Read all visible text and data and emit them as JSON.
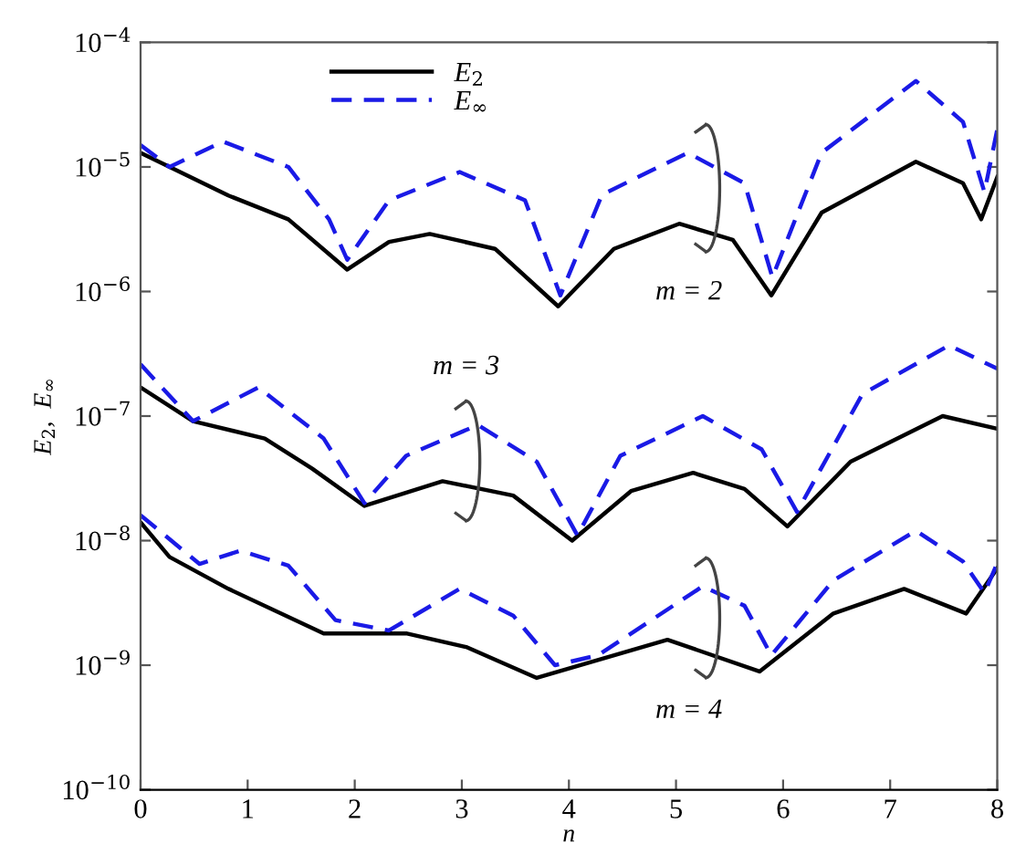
{
  "chart_data": {
    "type": "line",
    "xlabel": "n",
    "ylabel": "E$_{2}$,  E$_{∞}$",
    "xlim": [
      0,
      8
    ],
    "xticks": [
      0,
      1,
      2,
      3,
      4,
      5,
      6,
      7,
      8
    ],
    "ylim": [
      1e-10,
      0.0001
    ],
    "log": "y",
    "yticks": [
      {
        "value": 1e-10,
        "label": "10$^{−10}$"
      },
      {
        "value": 1e-09,
        "label": "10$^{−9}$"
      },
      {
        "value": 1e-08,
        "label": "10$^{−8}$"
      },
      {
        "value": 1e-07,
        "label": "10$^{−7}$"
      },
      {
        "value": 1e-06,
        "label": "10$^{−6}$"
      },
      {
        "value": 1e-05,
        "label": "10$^{−5}$"
      },
      {
        "value": 0.0001,
        "label": "10$^{−4}$"
      }
    ],
    "grid": false,
    "legend": "top",
    "marker": "none",
    "series": [
      {
        "name": "E$_{2}$",
        "color": "#000000",
        "line_style": "solid",
        "x": [
          0,
          0.82,
          1.38,
          1.93,
          2.32,
          2.7,
          3.31,
          3.9,
          4.42,
          5.03,
          5.53,
          5.89,
          6.36,
          7.24,
          7.68,
          7.85,
          8
        ],
        "values": [
          1.3e-05,
          5.9e-06,
          3.8e-06,
          1.5e-06,
          2.5e-06,
          2.9e-06,
          2.2e-06,
          7.6e-07,
          2.2e-06,
          3.5e-06,
          2.6e-06,
          9.3e-07,
          4.3e-06,
          1.1e-05,
          7.4e-06,
          3.8e-06,
          8.3e-06
        ]
      },
      {
        "name": "E$_{∞}$",
        "color": "#1a1ae6",
        "line_style": "dashed",
        "x": [
          0,
          0.27,
          0.77,
          1.38,
          1.76,
          1.93,
          2.32,
          2.98,
          3.59,
          3.92,
          4.31,
          5.11,
          5.64,
          5.9,
          6.36,
          7.24,
          7.68,
          7.88,
          8
        ],
        "values": [
          1.5e-05,
          1e-05,
          1.6e-05,
          1e-05,
          3.8e-06,
          1.8e-06,
          5.4e-06,
          9.1e-06,
          5.4e-06,
          9.3e-07,
          6e-06,
          1.3e-05,
          7.4e-06,
          1.3e-06,
          1.3e-05,
          4.9e-05,
          2.3e-05,
          6.3e-06,
          2e-05
        ]
      },
      {
        "color": "#000000",
        "line_style": "solid",
        "x": [
          0,
          0.49,
          1.16,
          1.6,
          2.09,
          2.82,
          3.48,
          4.03,
          4.58,
          5.16,
          5.64,
          6.04,
          6.63,
          7.49,
          8
        ],
        "values": [
          1.7e-07,
          9.1e-08,
          6.6e-08,
          3.8e-08,
          1.9e-08,
          3e-08,
          2.3e-08,
          1e-08,
          2.5e-08,
          3.5e-08,
          2.6e-08,
          1.3e-08,
          4.3e-08,
          1e-07,
          7.9e-08
        ]
      },
      {
        "color": "#1a1ae6",
        "line_style": "dashed",
        "x": [
          0,
          0.49,
          1.1,
          1.71,
          2.09,
          2.48,
          3.15,
          3.7,
          4.08,
          4.48,
          5.25,
          5.8,
          6.13,
          6.74,
          7.55,
          8
        ],
        "values": [
          2.6e-07,
          9.1e-08,
          1.7e-07,
          6.6e-08,
          2e-08,
          4.8e-08,
          8.5e-08,
          4.3e-08,
          1.1e-08,
          4.8e-08,
          1e-07,
          5.4e-08,
          1.7e-08,
          1.5e-07,
          3.7e-07,
          2.4e-07
        ]
      },
      {
        "color": "#000000",
        "line_style": "solid",
        "x": [
          0,
          0.27,
          0.82,
          1.71,
          2.48,
          3.04,
          3.7,
          4.92,
          5.78,
          6.47,
          7.13,
          7.71,
          8
        ],
        "values": [
          1.4e-08,
          7.4e-09,
          4.1e-09,
          1.8e-09,
          1.8e-09,
          1.4e-09,
          7.9e-10,
          1.6e-09,
          8.9e-10,
          2.6e-09,
          4.1e-09,
          2.6e-09,
          6e-09
        ]
      },
      {
        "color": "#1a1ae6",
        "line_style": "dashed",
        "x": [
          0,
          0.55,
          0.93,
          1.38,
          1.82,
          2.32,
          2.98,
          3.48,
          3.87,
          4.27,
          5.25,
          5.64,
          5.89,
          6.47,
          7.24,
          7.68,
          7.88,
          8
        ],
        "values": [
          1.6e-08,
          6.5e-09,
          8.3e-09,
          6.3e-09,
          2.3e-09,
          1.9e-09,
          4.1e-09,
          2.5e-09,
          1e-09,
          1.2e-09,
          4.3e-09,
          3e-09,
          1.2e-09,
          4.8e-09,
          1.2e-08,
          6.8e-09,
          3.8e-09,
          6.6e-09
        ]
      }
    ],
    "annotations": [
      "m = 2",
      "m = 3",
      "m = 4"
    ]
  }
}
